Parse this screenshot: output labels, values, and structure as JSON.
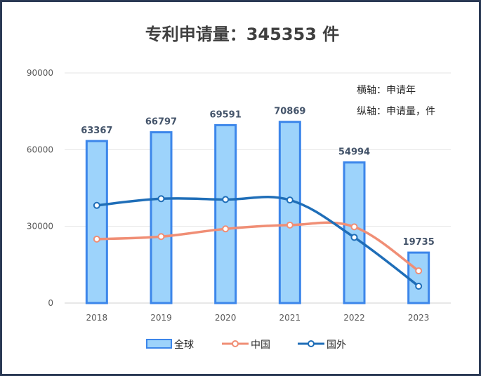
{
  "colors": {
    "bar_fill": "#9dd3fb",
    "bar_stroke": "#3c86ea",
    "china_line": "#f08e75",
    "foreign_line": "#1f6eb8",
    "frame": "#2b3a55"
  },
  "chart_data": {
    "type": "bar",
    "title": "专利申请量：345353 件",
    "categories": [
      "2018",
      "2019",
      "2020",
      "2021",
      "2022",
      "2023"
    ],
    "ylim": [
      0,
      90000
    ],
    "yticks": [
      0,
      30000,
      60000,
      90000
    ],
    "ytick_labels": [
      "0",
      "30000",
      "60000",
      "90000"
    ],
    "grid": true,
    "legend_position": "bottom",
    "notes": [
      "横轴：申请年",
      "纵轴：申请量，件"
    ],
    "series": [
      {
        "name": "全球",
        "type": "bar",
        "values": [
          63367,
          66797,
          69591,
          70869,
          54994,
          19735
        ],
        "labels": [
          "63367",
          "66797",
          "69591",
          "70869",
          "54994",
          "19735"
        ]
      },
      {
        "name": "中国",
        "type": "line",
        "values": [
          25000,
          26000,
          29000,
          30500,
          29800,
          12600
        ]
      },
      {
        "name": "国外",
        "type": "line",
        "values": [
          38200,
          40800,
          40500,
          40300,
          25700,
          6600
        ]
      }
    ]
  }
}
